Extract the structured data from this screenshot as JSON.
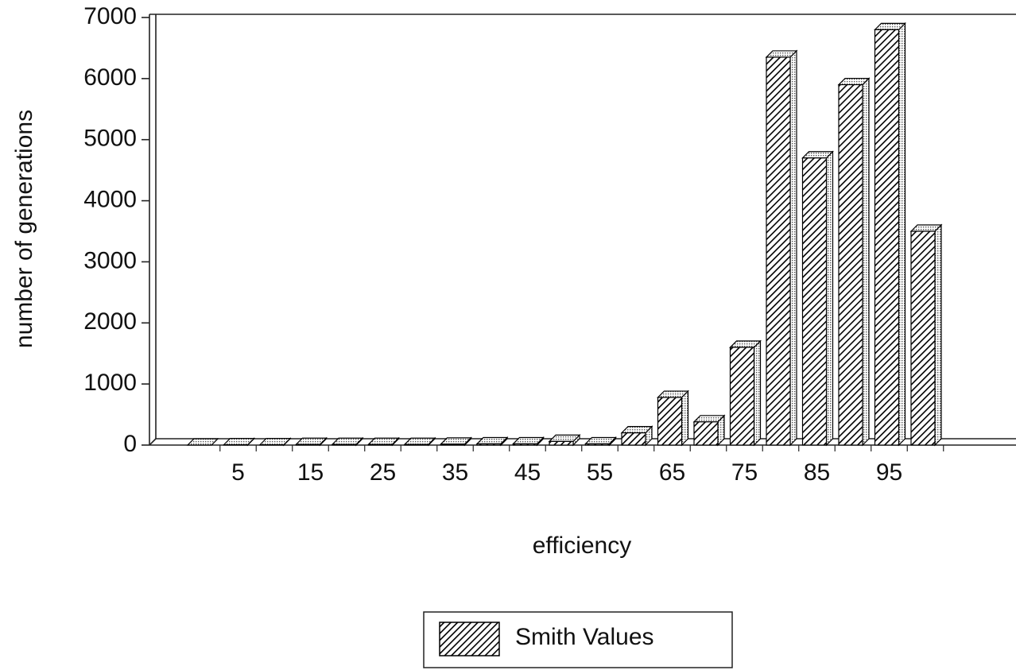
{
  "chart_data": {
    "type": "bar",
    "x_label": "efficiency",
    "y_label": "number of generations",
    "categories": [
      null,
      "5",
      null,
      "15",
      null,
      "25",
      null,
      "35",
      null,
      "45",
      null,
      "55",
      null,
      "65",
      null,
      "75",
      null,
      "85",
      null,
      "95",
      null
    ],
    "series": [
      {
        "name": "Smith Values",
        "color": "#000000",
        "values": [
          0,
          5,
          5,
          10,
          10,
          10,
          10,
          15,
          20,
          20,
          60,
          20,
          200,
          780,
          380,
          1600,
          6350,
          4700,
          5900,
          6800,
          3500
        ]
      }
    ],
    "ylim": [
      0,
      7000
    ],
    "yticks": [
      0,
      1000,
      2000,
      3000,
      4000,
      5000,
      6000,
      7000
    ],
    "legend": "bottom"
  }
}
